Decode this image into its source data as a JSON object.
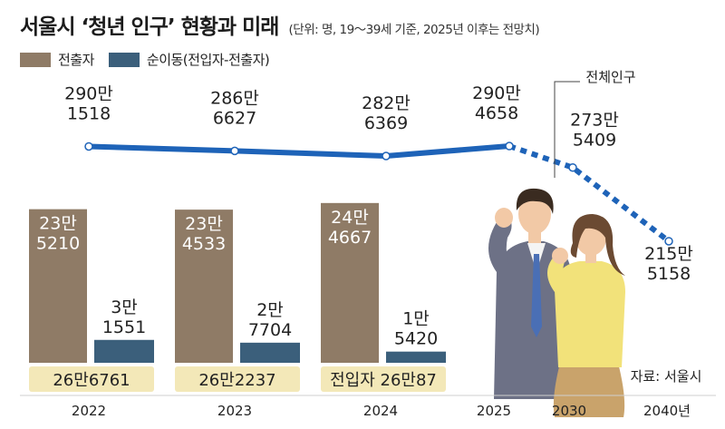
{
  "title": "서울시 ‘청년 인구’ 현황과 미래",
  "subtitle": "(단위: 명, 19～39세 기준, 2025년 이후는 전망치)",
  "legend": [
    {
      "name": "전출자",
      "color": "#8f7b66"
    },
    {
      "name": "순이동(전입자-전출자)",
      "color": "#3b5f7b"
    }
  ],
  "colors": {
    "outflow_bar": "#8f7b66",
    "net_bar": "#3b5f7b",
    "population_line": "#1e63b8",
    "inflow_box": "#f3e8b8"
  },
  "illustration": "young-man-and-woman-figures",
  "chart_data": {
    "type": "bar+line",
    "years": [
      "2022",
      "2023",
      "2024",
      "2025",
      "2030",
      "2040년"
    ],
    "population_series": {
      "name": "전체인구",
      "values": [
        2901518,
        2866627,
        2826369,
        2904658,
        2735409,
        2155158
      ],
      "labels": [
        [
          "290만",
          "1518"
        ],
        [
          "286만",
          "6627"
        ],
        [
          "282만",
          "6369"
        ],
        [
          "290만",
          "4658"
        ],
        [
          "273만",
          "5409"
        ],
        [
          "215만",
          "5158"
        ]
      ],
      "projected_from_index": 3
    },
    "outflow_series": {
      "name": "전출자",
      "values": [
        235210,
        234533,
        244667
      ],
      "labels": [
        [
          "23만",
          "5210"
        ],
        [
          "23만",
          "4533"
        ],
        [
          "24만",
          "4667"
        ]
      ]
    },
    "net_migration_series": {
      "name": "순이동(전입자-전출자)",
      "values": [
        31551,
        27704,
        15420
      ],
      "labels": [
        [
          "3만",
          "1551"
        ],
        [
          "2만",
          "7704"
        ],
        [
          "1만",
          "5420"
        ]
      ]
    },
    "inflow_series": {
      "name": "전입자",
      "values": [
        266761,
        262237,
        260087
      ],
      "labels": [
        "26만6761",
        "26만2237",
        "전입자 26만87"
      ]
    },
    "source": "자료: 서울시"
  }
}
